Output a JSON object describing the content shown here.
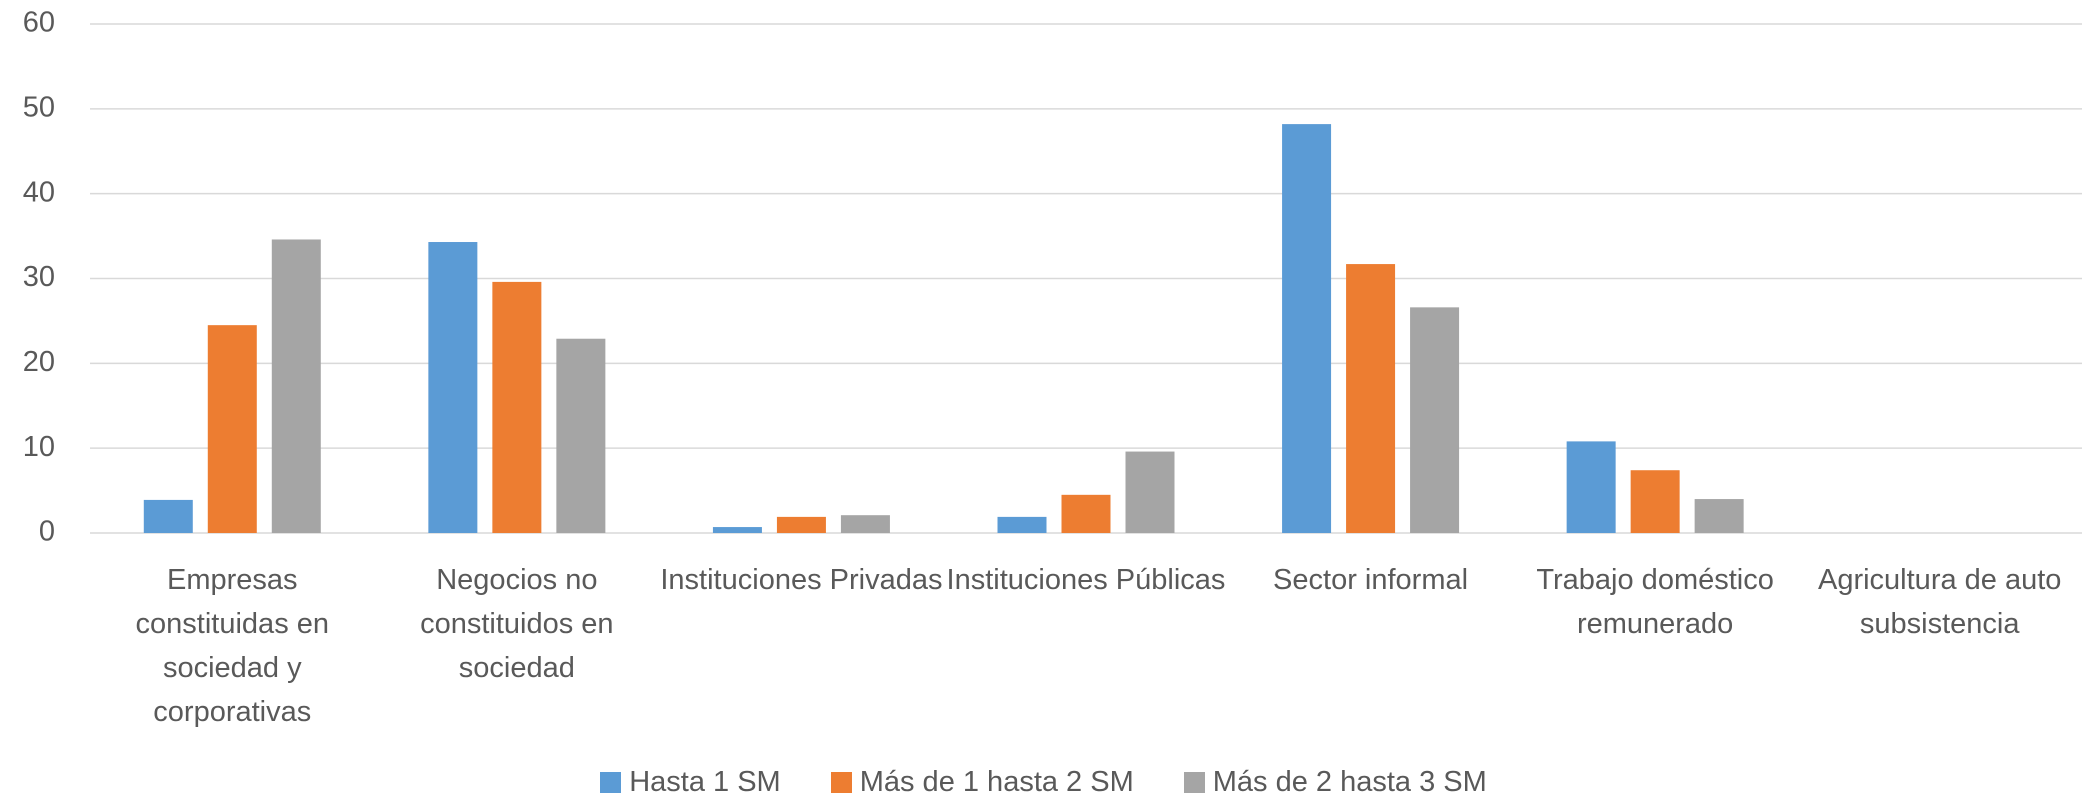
{
  "chart_data": {
    "type": "bar",
    "categories": [
      "Empresas constituidas en sociedad y corporativas",
      "Negocios no constituidos en sociedad",
      "Instituciones Privadas",
      "Instituciones Públicas",
      "Sector informal",
      "Trabajo doméstico remunerado",
      "Agricultura de auto subsistencia"
    ],
    "series": [
      {
        "name": "Hasta 1 SM",
        "color": "#5b9bd5",
        "values": [
          3.9,
          34.3,
          0.7,
          1.9,
          48.2,
          10.8,
          0
        ]
      },
      {
        "name": "Más de 1 hasta 2 SM",
        "color": "#ed7d31",
        "values": [
          24.5,
          29.6,
          1.9,
          4.5,
          31.7,
          7.4,
          0
        ]
      },
      {
        "name": "Más de 2 hasta 3 SM",
        "color": "#a5a5a5",
        "values": [
          34.6,
          22.9,
          2.1,
          9.6,
          26.6,
          4.0,
          0
        ]
      }
    ],
    "ylim": [
      0,
      60
    ],
    "yticks": [
      0,
      10,
      20,
      30,
      40,
      50,
      60
    ],
    "grid": true
  }
}
